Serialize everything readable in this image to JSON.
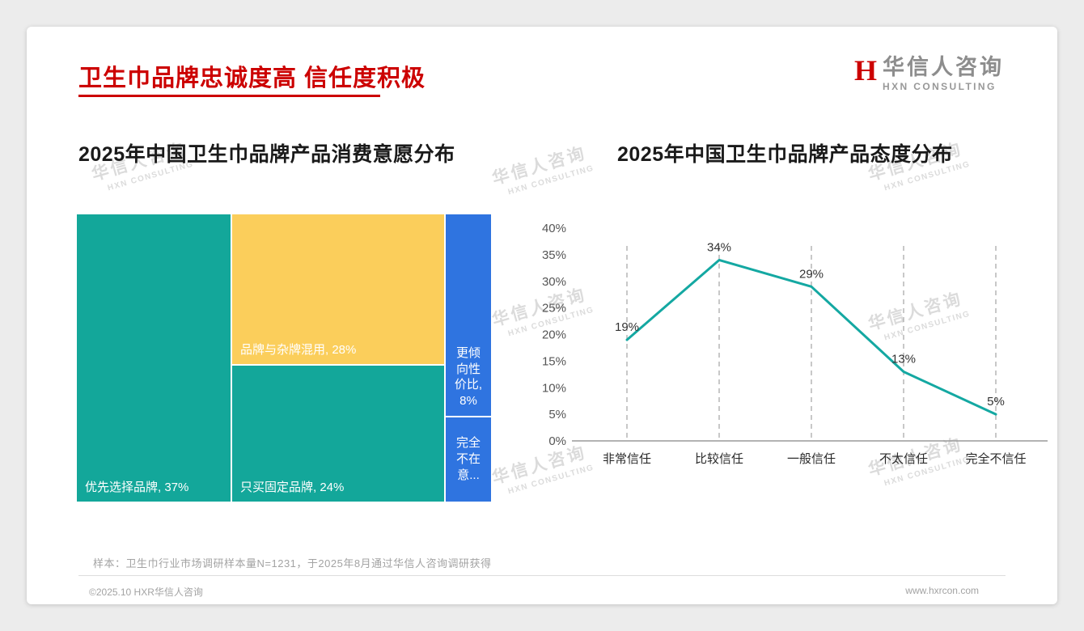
{
  "theme": {
    "accent_red": "#CC0000",
    "teal": "#13A79A",
    "yellow": "#FBCE5B",
    "blue": "#2F74E0",
    "line_teal": "#14A8A2"
  },
  "header": {
    "title": "卫生巾品牌忠诚度高 信任度积极",
    "logo": {
      "mark": "H",
      "cn": "华信人咨询",
      "en": "HXN CONSULTING"
    }
  },
  "watermark": {
    "cn": "华信人咨询",
    "en": "HXN CONSULTING"
  },
  "footer": {
    "sample_note": "样本：卫生巾行业市场调研样本量N=1231，于2025年8月通过华信人咨询调研获得",
    "copyright": "©2025.10 HXR华信人咨询",
    "website": "www.hxrcon.com"
  },
  "chart_data": [
    {
      "type": "treemap",
      "title": "2025年中国卫生巾品牌产品消费意愿分布",
      "items": [
        {
          "category": "优先选择品牌",
          "value": 37,
          "label": "优先选择品牌, 37%",
          "color": "#13A79A"
        },
        {
          "category": "品牌与杂牌混用",
          "value": 28,
          "label": "品牌与杂牌混用, 28%",
          "color": "#FBCE5B"
        },
        {
          "category": "只买固定品牌",
          "value": 24,
          "label": "只买固定品牌, 24%",
          "color": "#13A79A"
        },
        {
          "category": "更倾向性价比",
          "value": 8,
          "label": "更倾向性价比, 8%",
          "color": "#2F74E0"
        },
        {
          "category": "完全不在意",
          "value": 3,
          "label": "完全不在意...",
          "color": "#2F74E0"
        }
      ]
    },
    {
      "type": "line",
      "title": "2025年中国卫生巾品牌产品态度分布",
      "categories": [
        "非常信任",
        "比较信任",
        "一般信任",
        "不太信任",
        "完全不信任"
      ],
      "values": [
        19,
        34,
        29,
        13,
        5
      ],
      "labels": [
        "19%",
        "34%",
        "29%",
        "13%",
        "5%"
      ],
      "ylim": [
        0,
        40
      ],
      "ytick_step": 5,
      "line_color": "#14A8A2",
      "grid": "dashed-vertical",
      "legend": "none"
    }
  ]
}
